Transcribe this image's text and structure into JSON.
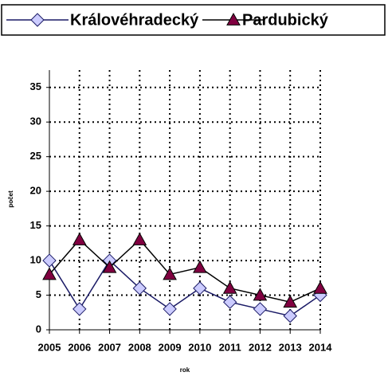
{
  "chart_data": {
    "type": "line",
    "categories": [
      "2005",
      "2006",
      "2007",
      "2008",
      "2009",
      "2010",
      "2011",
      "2012",
      "2013",
      "2014"
    ],
    "series": [
      {
        "name": "Královéhradecký",
        "color": "#1a1a66",
        "marker_fill": "#ccccff",
        "marker": "diamond",
        "values": [
          10,
          3,
          10,
          6,
          3,
          6,
          4,
          3,
          2,
          5
        ]
      },
      {
        "name": "Pardubický",
        "color": "#000000",
        "marker_fill": "#800040",
        "marker": "triangle",
        "values": [
          8,
          13,
          9,
          13,
          8,
          9,
          6,
          5,
          4,
          6
        ]
      }
    ],
    "x_label": "rok",
    "y_label": "počet",
    "ylim": [
      0,
      37.5
    ],
    "yticks": [
      0,
      5,
      10,
      15,
      20,
      25,
      30,
      35
    ],
    "grid": true
  }
}
